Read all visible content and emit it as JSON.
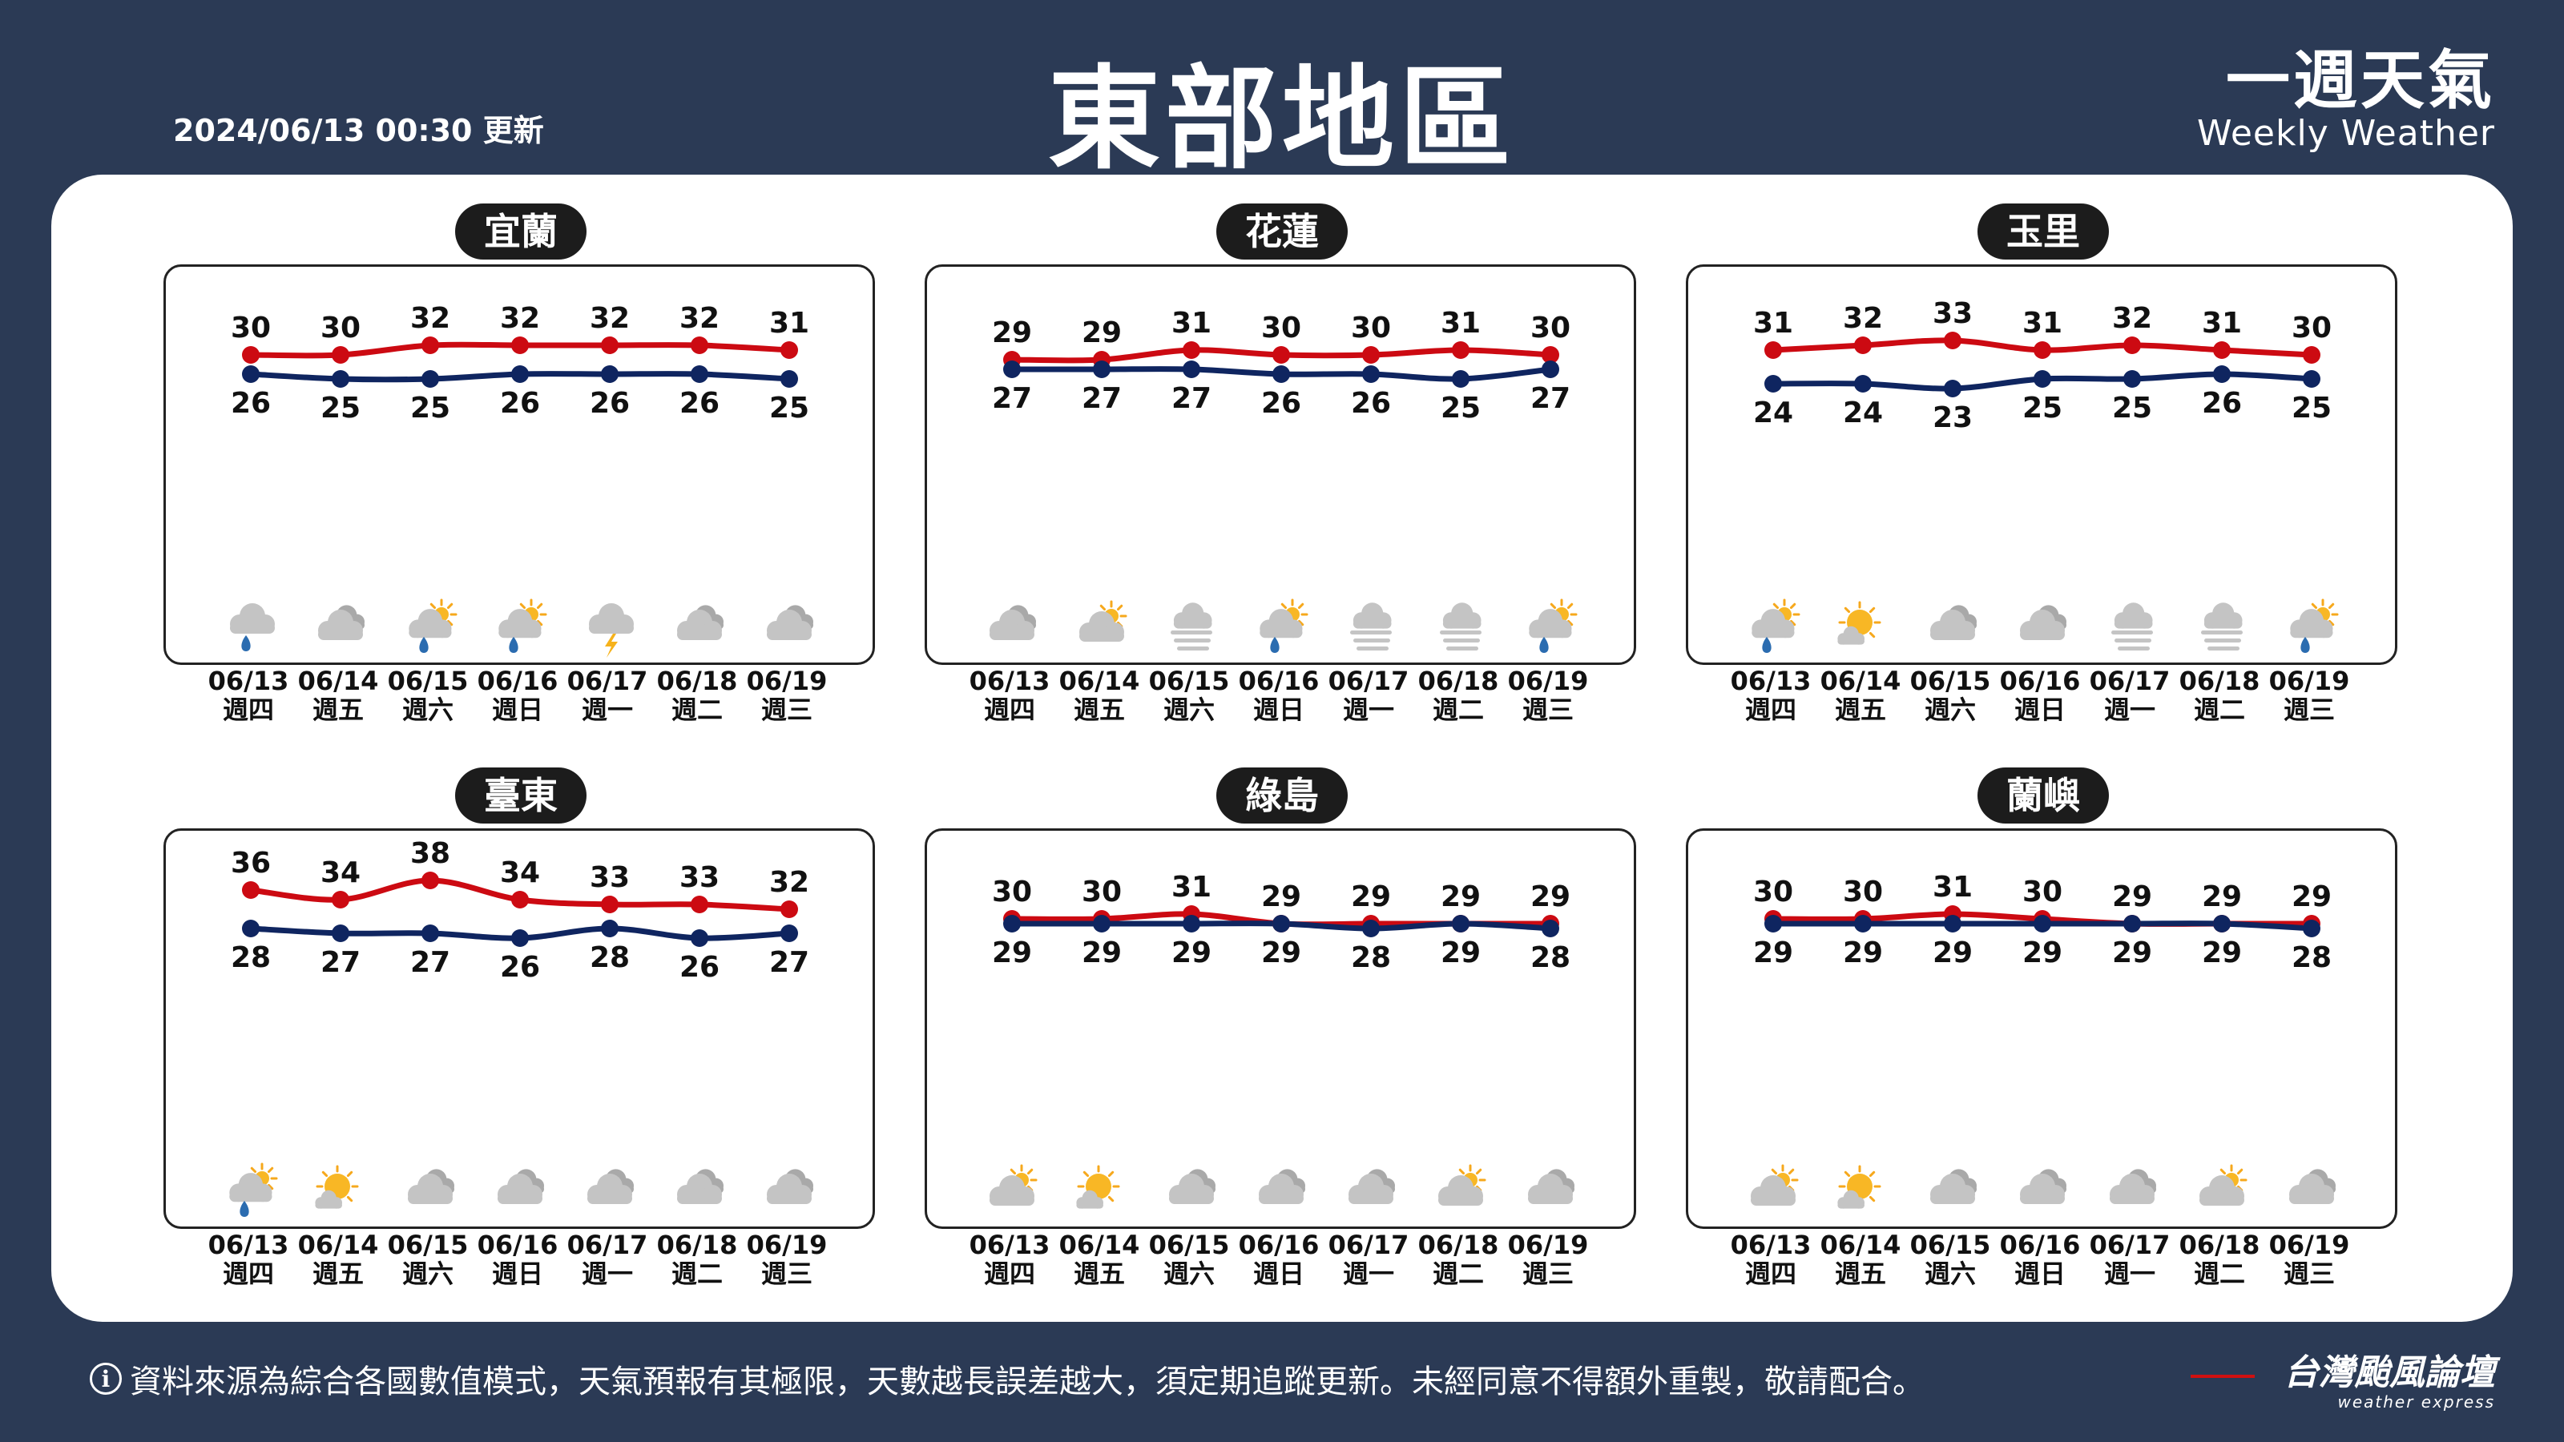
{
  "header": {
    "title": "東部地區",
    "updated": "2024/06/13 00:30 更新",
    "brand_zh": "一週天氣",
    "brand_en": "Weekly Weather"
  },
  "days": [
    {
      "date": "06/13",
      "weekday": "週四"
    },
    {
      "date": "06/14",
      "weekday": "週五"
    },
    {
      "date": "06/15",
      "weekday": "週六"
    },
    {
      "date": "06/16",
      "weekday": "週日"
    },
    {
      "date": "06/17",
      "weekday": "週一"
    },
    {
      "date": "06/18",
      "weekday": "週二"
    },
    {
      "date": "06/19",
      "weekday": "週三"
    }
  ],
  "colors": {
    "high": "#cc0a12",
    "low": "#0f2560",
    "panel": "#ffffff",
    "background": "#2b3a55"
  },
  "chart_data": [
    {
      "type": "line",
      "title": "宜蘭",
      "x": [
        "06/13",
        "06/14",
        "06/15",
        "06/16",
        "06/17",
        "06/18",
        "06/19"
      ],
      "series": [
        {
          "name": "",
          "values": [
            30,
            30,
            32,
            32,
            32,
            32,
            31
          ]
        },
        {
          "name": "",
          "values": [
            26,
            25,
            25,
            26,
            26,
            26,
            25
          ]
        }
      ],
      "icons": [
        "cloud-rain-icon",
        "cloud-icon",
        "partly-cloudy-rain-icon",
        "partly-cloudy-rain-icon",
        "cloud-thunder-icon",
        "cloud-icon",
        "cloud-icon"
      ]
    },
    {
      "type": "line",
      "title": "花蓮",
      "x": [
        "06/13",
        "06/14",
        "06/15",
        "06/16",
        "06/17",
        "06/18",
        "06/19"
      ],
      "series": [
        {
          "name": "",
          "values": [
            29,
            29,
            31,
            30,
            30,
            31,
            30
          ]
        },
        {
          "name": "",
          "values": [
            27,
            27,
            27,
            26,
            26,
            25,
            27
          ]
        }
      ],
      "icons": [
        "cloud-icon",
        "partly-cloudy-icon",
        "fog-icon",
        "partly-cloudy-rain-icon",
        "fog-icon",
        "fog-icon",
        "partly-cloudy-rain-icon"
      ]
    },
    {
      "type": "line",
      "title": "玉里",
      "x": [
        "06/13",
        "06/14",
        "06/15",
        "06/16",
        "06/17",
        "06/18",
        "06/19"
      ],
      "series": [
        {
          "name": "",
          "values": [
            31,
            32,
            33,
            31,
            32,
            31,
            30
          ]
        },
        {
          "name": "",
          "values": [
            24,
            24,
            23,
            25,
            25,
            26,
            25
          ]
        }
      ],
      "icons": [
        "partly-cloudy-rain-icon",
        "sun-cloud-icon",
        "cloud-icon",
        "cloud-icon",
        "fog-icon",
        "fog-icon",
        "partly-cloudy-rain-icon"
      ]
    },
    {
      "type": "line",
      "title": "臺東",
      "x": [
        "06/13",
        "06/14",
        "06/15",
        "06/16",
        "06/17",
        "06/18",
        "06/19"
      ],
      "series": [
        {
          "name": "",
          "values": [
            36,
            34,
            38,
            34,
            33,
            33,
            32
          ]
        },
        {
          "name": "",
          "values": [
            28,
            27,
            27,
            26,
            28,
            26,
            27
          ]
        }
      ],
      "icons": [
        "partly-cloudy-rain-icon",
        "sun-cloud-icon",
        "cloud-icon",
        "cloud-icon",
        "cloud-icon",
        "cloud-icon",
        "cloud-icon"
      ]
    },
    {
      "type": "line",
      "title": "綠島",
      "x": [
        "06/13",
        "06/14",
        "06/15",
        "06/16",
        "06/17",
        "06/18",
        "06/19"
      ],
      "series": [
        {
          "name": "",
          "values": [
            30,
            30,
            31,
            29,
            29,
            29,
            29
          ]
        },
        {
          "name": "",
          "values": [
            29,
            29,
            29,
            29,
            28,
            29,
            28
          ]
        }
      ],
      "icons": [
        "partly-cloudy-icon",
        "sun-cloud-icon",
        "cloud-icon",
        "cloud-icon",
        "cloud-icon",
        "partly-cloudy-icon",
        "cloud-icon"
      ]
    },
    {
      "type": "line",
      "title": "蘭嶼",
      "x": [
        "06/13",
        "06/14",
        "06/15",
        "06/16",
        "06/17",
        "06/18",
        "06/19"
      ],
      "series": [
        {
          "name": "",
          "values": [
            30,
            30,
            31,
            30,
            29,
            29,
            29
          ]
        },
        {
          "name": "",
          "values": [
            29,
            29,
            29,
            29,
            29,
            29,
            28
          ]
        }
      ],
      "icons": [
        "partly-cloudy-icon",
        "sun-cloud-icon",
        "cloud-icon",
        "cloud-icon",
        "cloud-icon",
        "partly-cloudy-icon",
        "cloud-icon"
      ]
    }
  ],
  "footer": {
    "info_icon": "i",
    "note": "資料來源為綜合各國數值模式，天氣預報有其極限，天數越長誤差越大，須定期追蹤更新。未經同意不得額外重製，敬請配合。",
    "logo_zh": "台灣颱風論壇",
    "logo_en": "weather express"
  }
}
